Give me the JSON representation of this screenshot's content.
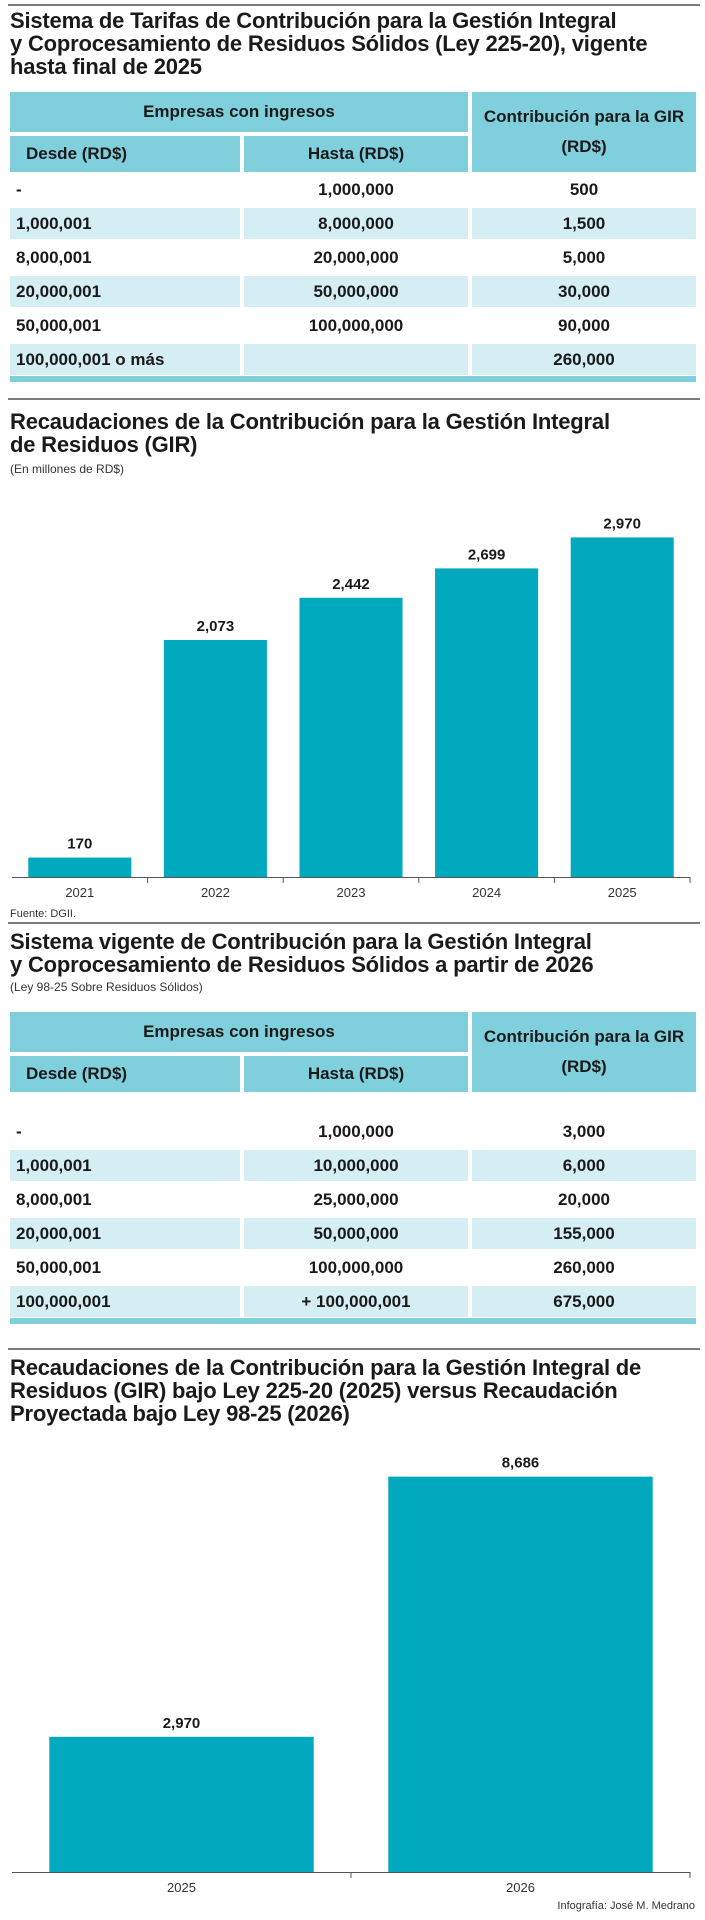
{
  "table1": {
    "title_line1": "Sistema de Tarifas de Contribución para la Gestión Integral",
    "title_line2": "y Coprocesamiento de Residuos Sólidos (Ley  225-20), vigente",
    "title_line3": "hasta final de 2025",
    "group_header": "Empresas  con ingresos",
    "col_desde": "Desde (RD$)",
    "col_hasta": "Hasta (RD$)",
    "col_contrib_line1": "Contribución para la GIR",
    "col_contrib_line2": "(RD$)",
    "rows": [
      {
        "desde": "-",
        "hasta": "1,000,000",
        "contrib": "500"
      },
      {
        "desde": "1,000,001",
        "hasta": "8,000,000",
        "contrib": "1,500"
      },
      {
        "desde": "8,000,001",
        "hasta": "20,000,000",
        "contrib": "5,000"
      },
      {
        "desde": "20,000,001",
        "hasta": "50,000,000",
        "contrib": "30,000"
      },
      {
        "desde": "50,000,001",
        "hasta": "100,000,000",
        "contrib": "90,000"
      },
      {
        "desde": "100,000,001 o más",
        "hasta": "",
        "contrib": "260,000"
      }
    ]
  },
  "chart1_text": {
    "title_line1": "Recaudaciones de la Contribución para la Gestión Integral",
    "title_line2": "de Residuos (GIR)",
    "subtitle": "(En millones de RD$)",
    "source": "Fuente: DGII."
  },
  "table2": {
    "title_line1": "Sistema vigente de Contribución para la Gestión Integral",
    "title_line2": "y Coprocesamiento de Residuos Sólidos a partir de 2026",
    "subtitle": "(Ley  98-25 Sobre Residuos Sólidos)",
    "group_header": "Empresas  con ingresos",
    "col_desde": "Desde (RD$)",
    "col_hasta": "Hasta (RD$)",
    "col_contrib_line1": "Contribución para la GIR",
    "col_contrib_line2": "(RD$)",
    "rows": [
      {
        "desde": "-",
        "hasta": "1,000,000",
        "contrib": "3,000"
      },
      {
        "desde": "1,000,001",
        "hasta": "10,000,000",
        "contrib": "6,000"
      },
      {
        "desde": "8,000,001",
        "hasta": "25,000,000",
        "contrib": "20,000"
      },
      {
        "desde": "20,000,001",
        "hasta": "50,000,000",
        "contrib": "155,000"
      },
      {
        "desde": "50,000,001",
        "hasta": "100,000,000",
        "contrib": "260,000"
      },
      {
        "desde": "100,000,001",
        "hasta": "+ 100,000,001",
        "contrib": "675,000"
      }
    ]
  },
  "chart2_text": {
    "title_line1": "Recaudaciones de la Contribución para la Gestión Integral de",
    "title_line2": "Residuos (GIR)  bajo Ley 225-20 (2025) versus Recaudación",
    "title_line3": "Proyectada bajo Ley 98-25 (2026)"
  },
  "credit": "Infografía: José M. Medrano",
  "colors": {
    "bar": "#00a9bd",
    "header": "#7fcfdc",
    "row_light": "#d4eef3"
  },
  "chart_data": [
    {
      "type": "bar",
      "title": "Recaudaciones de la Contribución para la Gestión Integral de Residuos (GIR)",
      "ylabel": "En millones de RD$",
      "categories": [
        "2021",
        "2022",
        "2023",
        "2024",
        "2025"
      ],
      "values": [
        170,
        2073,
        2442,
        2699,
        2970
      ],
      "labels": [
        "170",
        "2,073",
        "2,442",
        "2,699",
        "2,970"
      ],
      "ylim": [
        0,
        3000
      ]
    },
    {
      "type": "bar",
      "title": "Recaudaciones de la Contribución para la Gestión Integral de Residuos (GIR) bajo Ley 225-20 (2025) versus Recaudación Proyectada bajo Ley 98-25 (2026)",
      "categories": [
        "2025",
        "2026"
      ],
      "values": [
        2970,
        8686
      ],
      "labels": [
        "2,970",
        "8,686"
      ],
      "ylim": [
        0,
        8700
      ]
    }
  ]
}
